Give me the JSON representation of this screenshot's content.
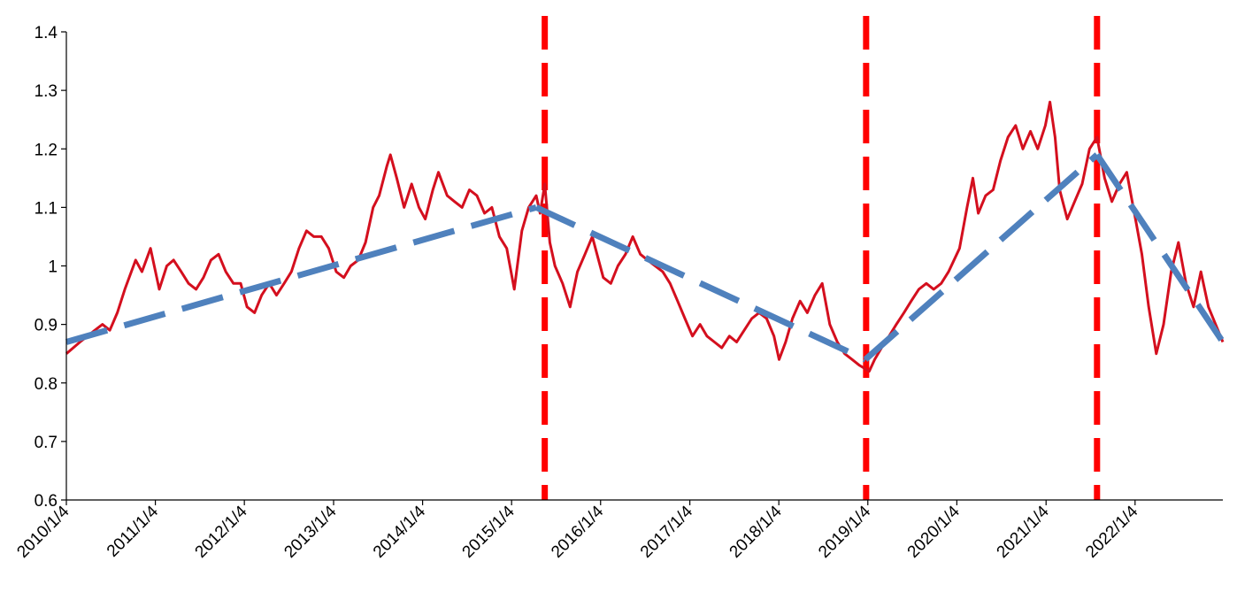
{
  "chart_data": {
    "type": "line",
    "title": "",
    "xlabel": "",
    "ylabel": "",
    "ylim": [
      0.6,
      1.4
    ],
    "yticks": [
      0.6,
      0.7,
      0.8,
      0.9,
      1.0,
      1.1,
      1.2,
      1.3,
      1.4
    ],
    "ytick_labels": [
      "0.6",
      "0.7",
      "0.8",
      "0.9",
      "1",
      "1.1",
      "1.2",
      "1.3",
      "1.4"
    ],
    "xlim": [
      "2010-01-04",
      "2022-12-30"
    ],
    "xticks": [
      "2010-01-04",
      "2011-01-04",
      "2012-01-04",
      "2013-01-04",
      "2014-01-04",
      "2015-01-04",
      "2016-01-04",
      "2017-01-04",
      "2018-01-04",
      "2019-01-04",
      "2020-01-04",
      "2021-01-04",
      "2022-01-04"
    ],
    "xtick_labels": [
      "2010/1/4",
      "2011/1/4",
      "2012/1/4",
      "2013/1/4",
      "2014/1/4",
      "2015/1/4",
      "2016/1/4",
      "2017/1/4",
      "2018/1/4",
      "2019/1/4",
      "2020/1/4",
      "2021/1/4",
      "2022/1/4"
    ],
    "grid": false,
    "legend": "none",
    "colors": {
      "series": "#d40f1e",
      "trend": "#4f81bd",
      "marker": "#ff0000",
      "axis": "#000000"
    },
    "series": [
      {
        "values": [
          [
            "2010-01-04",
            0.85
          ],
          [
            "2010-02-01",
            0.86
          ],
          [
            "2010-03-01",
            0.87
          ],
          [
            "2010-04-01",
            0.88
          ],
          [
            "2010-05-01",
            0.89
          ],
          [
            "2010-06-01",
            0.9
          ],
          [
            "2010-07-01",
            0.89
          ],
          [
            "2010-08-01",
            0.92
          ],
          [
            "2010-09-01",
            0.96
          ],
          [
            "2010-10-15",
            1.01
          ],
          [
            "2010-11-10",
            0.99
          ],
          [
            "2010-12-15",
            1.03
          ],
          [
            "2011-01-20",
            0.96
          ],
          [
            "2011-02-20",
            1.0
          ],
          [
            "2011-03-20",
            1.01
          ],
          [
            "2011-04-20",
            0.99
          ],
          [
            "2011-05-20",
            0.97
          ],
          [
            "2011-06-20",
            0.96
          ],
          [
            "2011-07-20",
            0.98
          ],
          [
            "2011-08-20",
            1.01
          ],
          [
            "2011-09-20",
            1.02
          ],
          [
            "2011-10-20",
            0.99
          ],
          [
            "2011-11-20",
            0.97
          ],
          [
            "2011-12-20",
            0.97
          ],
          [
            "2012-01-15",
            0.93
          ],
          [
            "2012-02-15",
            0.92
          ],
          [
            "2012-03-15",
            0.95
          ],
          [
            "2012-04-15",
            0.97
          ],
          [
            "2012-05-15",
            0.95
          ],
          [
            "2012-06-15",
            0.97
          ],
          [
            "2012-07-15",
            0.99
          ],
          [
            "2012-08-15",
            1.03
          ],
          [
            "2012-09-15",
            1.06
          ],
          [
            "2012-10-15",
            1.05
          ],
          [
            "2012-11-15",
            1.05
          ],
          [
            "2012-12-15",
            1.03
          ],
          [
            "2013-01-15",
            0.99
          ],
          [
            "2013-02-15",
            0.98
          ],
          [
            "2013-03-15",
            1.0
          ],
          [
            "2013-04-15",
            1.01
          ],
          [
            "2013-05-15",
            1.04
          ],
          [
            "2013-06-15",
            1.1
          ],
          [
            "2013-07-10",
            1.12
          ],
          [
            "2013-08-10",
            1.17
          ],
          [
            "2013-08-25",
            1.19
          ],
          [
            "2013-09-20",
            1.15
          ],
          [
            "2013-10-20",
            1.1
          ],
          [
            "2013-11-20",
            1.14
          ],
          [
            "2013-12-20",
            1.1
          ],
          [
            "2014-01-15",
            1.08
          ],
          [
            "2014-02-15",
            1.13
          ],
          [
            "2014-03-10",
            1.16
          ],
          [
            "2014-04-15",
            1.12
          ],
          [
            "2014-05-15",
            1.11
          ],
          [
            "2014-06-15",
            1.1
          ],
          [
            "2014-07-15",
            1.13
          ],
          [
            "2014-08-15",
            1.12
          ],
          [
            "2014-09-15",
            1.09
          ],
          [
            "2014-10-15",
            1.1
          ],
          [
            "2014-11-15",
            1.05
          ],
          [
            "2014-12-15",
            1.03
          ],
          [
            "2015-01-15",
            0.96
          ],
          [
            "2015-02-15",
            1.06
          ],
          [
            "2015-03-15",
            1.1
          ],
          [
            "2015-04-15",
            1.12
          ],
          [
            "2015-05-01",
            1.09
          ],
          [
            "2015-05-20",
            1.14
          ],
          [
            "2015-06-10",
            1.04
          ],
          [
            "2015-07-01",
            1.0
          ],
          [
            "2015-08-01",
            0.97
          ],
          [
            "2015-09-01",
            0.93
          ],
          [
            "2015-10-01",
            0.99
          ],
          [
            "2015-11-01",
            1.02
          ],
          [
            "2015-12-01",
            1.05
          ],
          [
            "2016-01-15",
            0.98
          ],
          [
            "2016-02-15",
            0.97
          ],
          [
            "2016-03-15",
            1.0
          ],
          [
            "2016-04-15",
            1.02
          ],
          [
            "2016-05-15",
            1.05
          ],
          [
            "2016-06-15",
            1.02
          ],
          [
            "2016-07-15",
            1.01
          ],
          [
            "2016-08-15",
            1.0
          ],
          [
            "2016-09-15",
            0.99
          ],
          [
            "2016-10-15",
            0.97
          ],
          [
            "2016-11-15",
            0.94
          ],
          [
            "2016-12-15",
            0.91
          ],
          [
            "2017-01-15",
            0.88
          ],
          [
            "2017-02-15",
            0.9
          ],
          [
            "2017-03-15",
            0.88
          ],
          [
            "2017-04-15",
            0.87
          ],
          [
            "2017-05-15",
            0.86
          ],
          [
            "2017-06-15",
            0.88
          ],
          [
            "2017-07-15",
            0.87
          ],
          [
            "2017-08-15",
            0.89
          ],
          [
            "2017-09-15",
            0.91
          ],
          [
            "2017-10-15",
            0.92
          ],
          [
            "2017-11-15",
            0.91
          ],
          [
            "2017-12-15",
            0.88
          ],
          [
            "2018-01-05",
            0.84
          ],
          [
            "2018-02-01",
            0.87
          ],
          [
            "2018-03-01",
            0.91
          ],
          [
            "2018-04-01",
            0.94
          ],
          [
            "2018-05-01",
            0.92
          ],
          [
            "2018-06-01",
            0.95
          ],
          [
            "2018-07-01",
            0.97
          ],
          [
            "2018-08-01",
            0.9
          ],
          [
            "2018-09-01",
            0.87
          ],
          [
            "2018-10-01",
            0.85
          ],
          [
            "2018-11-01",
            0.84
          ],
          [
            "2018-12-01",
            0.83
          ],
          [
            "2019-01-10",
            0.82
          ],
          [
            "2019-02-01",
            0.84
          ],
          [
            "2019-03-01",
            0.86
          ],
          [
            "2019-04-01",
            0.88
          ],
          [
            "2019-05-01",
            0.9
          ],
          [
            "2019-06-01",
            0.92
          ],
          [
            "2019-07-01",
            0.94
          ],
          [
            "2019-08-01",
            0.96
          ],
          [
            "2019-09-01",
            0.97
          ],
          [
            "2019-10-01",
            0.96
          ],
          [
            "2019-11-01",
            0.97
          ],
          [
            "2019-12-01",
            0.99
          ],
          [
            "2020-01-15",
            1.03
          ],
          [
            "2020-02-15",
            1.1
          ],
          [
            "2020-03-10",
            1.15
          ],
          [
            "2020-04-01",
            1.09
          ],
          [
            "2020-05-01",
            1.12
          ],
          [
            "2020-06-01",
            1.13
          ],
          [
            "2020-07-01",
            1.18
          ],
          [
            "2020-08-01",
            1.22
          ],
          [
            "2020-09-01",
            1.24
          ],
          [
            "2020-10-01",
            1.2
          ],
          [
            "2020-11-01",
            1.23
          ],
          [
            "2020-12-01",
            1.2
          ],
          [
            "2021-01-01",
            1.24
          ],
          [
            "2021-01-20",
            1.28
          ],
          [
            "2021-02-10",
            1.22
          ],
          [
            "2021-03-01",
            1.13
          ],
          [
            "2021-04-01",
            1.08
          ],
          [
            "2021-05-01",
            1.11
          ],
          [
            "2021-06-01",
            1.14
          ],
          [
            "2021-07-01",
            1.2
          ],
          [
            "2021-08-01",
            1.22
          ],
          [
            "2021-09-01",
            1.15
          ],
          [
            "2021-10-01",
            1.11
          ],
          [
            "2021-11-01",
            1.14
          ],
          [
            "2021-12-01",
            1.16
          ],
          [
            "2022-01-10",
            1.07
          ],
          [
            "2022-02-01",
            1.02
          ],
          [
            "2022-03-01",
            0.93
          ],
          [
            "2022-04-01",
            0.85
          ],
          [
            "2022-05-01",
            0.9
          ],
          [
            "2022-06-01",
            0.99
          ],
          [
            "2022-07-01",
            1.04
          ],
          [
            "2022-08-01",
            0.97
          ],
          [
            "2022-09-01",
            0.93
          ],
          [
            "2022-10-01",
            0.99
          ],
          [
            "2022-11-01",
            0.93
          ],
          [
            "2022-12-30",
            0.87
          ]
        ]
      }
    ],
    "trend_line": [
      [
        "2010-01-04",
        0.87
      ],
      [
        "2015-04-15",
        1.1
      ],
      [
        "2018-12-25",
        0.84
      ],
      [
        "2021-08-01",
        1.19
      ],
      [
        "2022-12-30",
        0.87
      ]
    ],
    "vertical_markers": [
      "2015-05-20",
      "2018-12-28",
      "2021-08-01"
    ]
  }
}
